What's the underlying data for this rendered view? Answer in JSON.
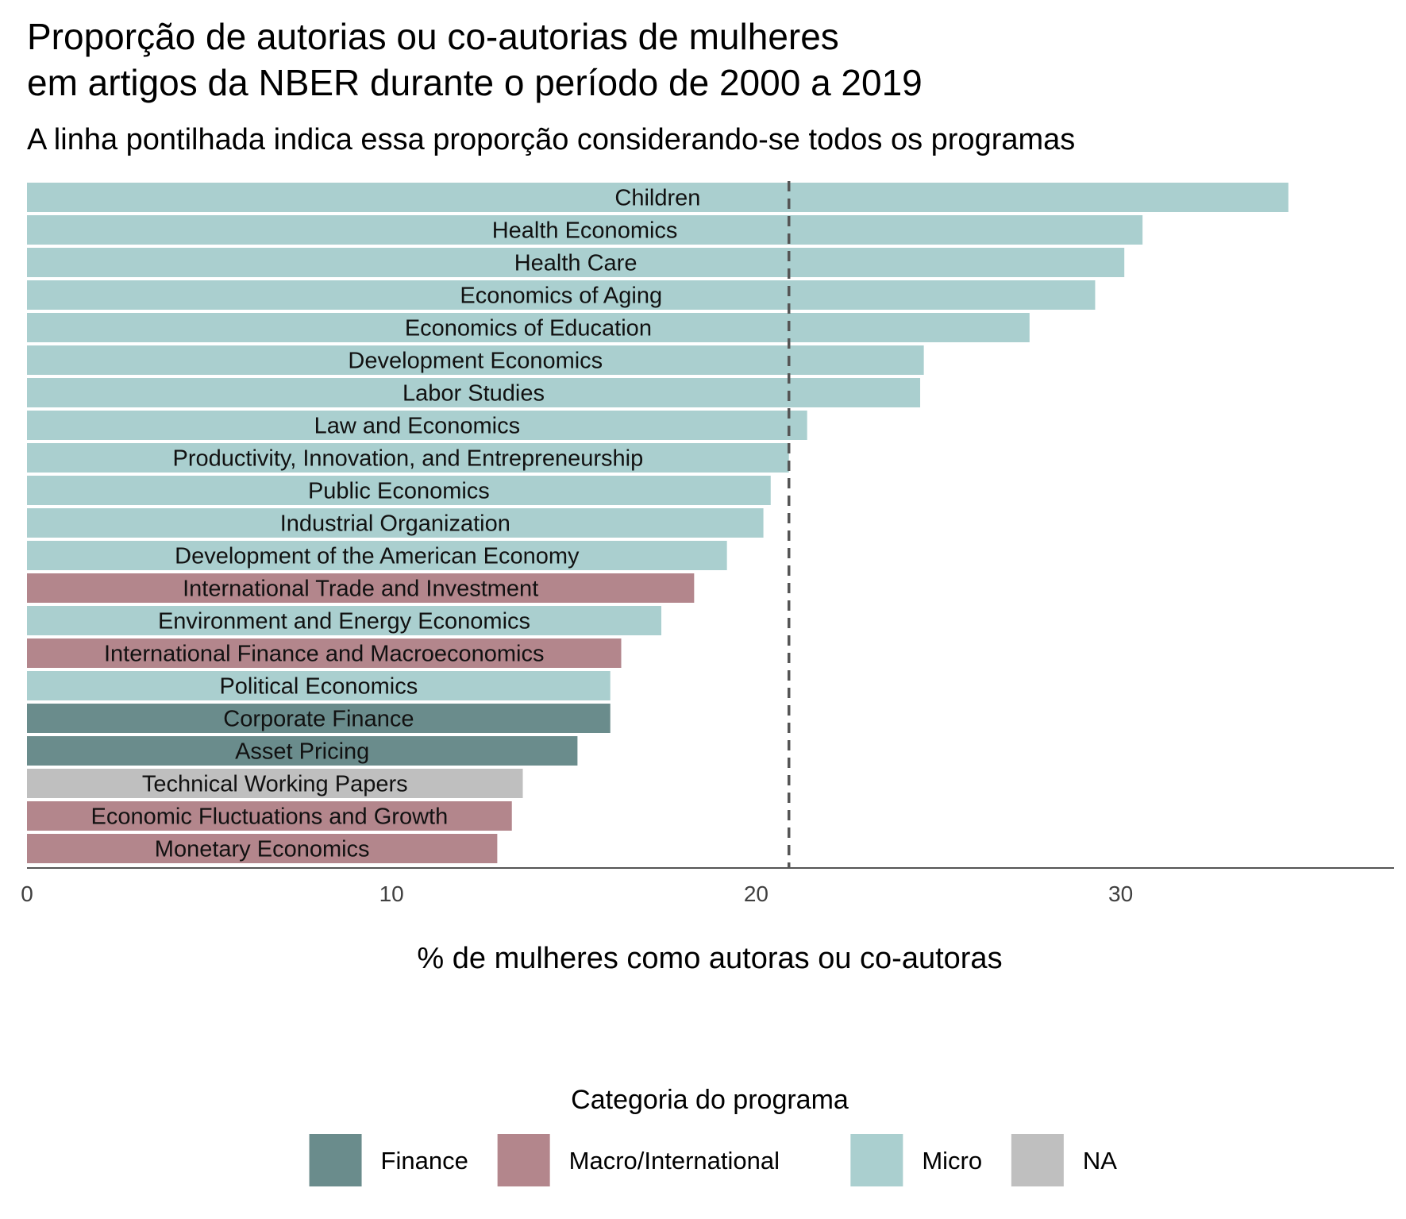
{
  "title_line1": "Proporção de autorias ou co-autorias de mulheres",
  "title_line2": "em artigos da NBER durante o período de 2000 a 2019",
  "subtitle": "A linha pontilhada indica essa proporção considerando-se todos os programas",
  "colors": {
    "Finance": "#6a8c8c",
    "Macro/International": "#b3868c",
    "Micro": "#aacfcf",
    "NA": "#bfbfbf",
    "axis": "#555555",
    "reference_line": "#555555"
  },
  "legend": {
    "title": "Categoria do programa",
    "items": [
      "Finance",
      "Macro/International",
      "Micro",
      "NA"
    ]
  },
  "chart_data": {
    "type": "bar",
    "orientation": "horizontal",
    "xlabel": "% de mulheres como autoras ou co-autoras",
    "xlim": [
      0,
      37.5
    ],
    "xticks": [
      0,
      10,
      20,
      30
    ],
    "reference_line": 20.9,
    "grid": false,
    "legend_position": "bottom",
    "bars": [
      {
        "category": "Children",
        "value": 34.6,
        "group": "Micro"
      },
      {
        "category": "Health Economics",
        "value": 30.6,
        "group": "Micro"
      },
      {
        "category": "Health Care",
        "value": 30.1,
        "group": "Micro"
      },
      {
        "category": "Economics of Aging",
        "value": 29.3,
        "group": "Micro"
      },
      {
        "category": "Economics of Education",
        "value": 27.5,
        "group": "Micro"
      },
      {
        "category": "Development Economics",
        "value": 24.6,
        "group": "Micro"
      },
      {
        "category": "Labor Studies",
        "value": 24.5,
        "group": "Micro"
      },
      {
        "category": "Law and Economics",
        "value": 21.4,
        "group": "Micro"
      },
      {
        "category": "Productivity, Innovation, and Entrepreneurship",
        "value": 20.9,
        "group": "Micro"
      },
      {
        "category": "Public Economics",
        "value": 20.4,
        "group": "Micro"
      },
      {
        "category": "Industrial Organization",
        "value": 20.2,
        "group": "Micro"
      },
      {
        "category": "Development of the American Economy",
        "value": 19.2,
        "group": "Micro"
      },
      {
        "category": "International Trade and Investment",
        "value": 18.3,
        "group": "Macro/International"
      },
      {
        "category": "Environment and Energy Economics",
        "value": 17.4,
        "group": "Micro"
      },
      {
        "category": "International Finance and Macroeconomics",
        "value": 16.3,
        "group": "Macro/International"
      },
      {
        "category": "Political Economics",
        "value": 16.0,
        "group": "Micro"
      },
      {
        "category": "Corporate Finance",
        "value": 16.0,
        "group": "Finance"
      },
      {
        "category": "Asset Pricing",
        "value": 15.1,
        "group": "Finance"
      },
      {
        "category": "Technical Working Papers",
        "value": 13.6,
        "group": "NA"
      },
      {
        "category": "Economic Fluctuations and Growth",
        "value": 13.3,
        "group": "Macro/International"
      },
      {
        "category": "Monetary Economics",
        "value": 12.9,
        "group": "Macro/International"
      }
    ]
  }
}
